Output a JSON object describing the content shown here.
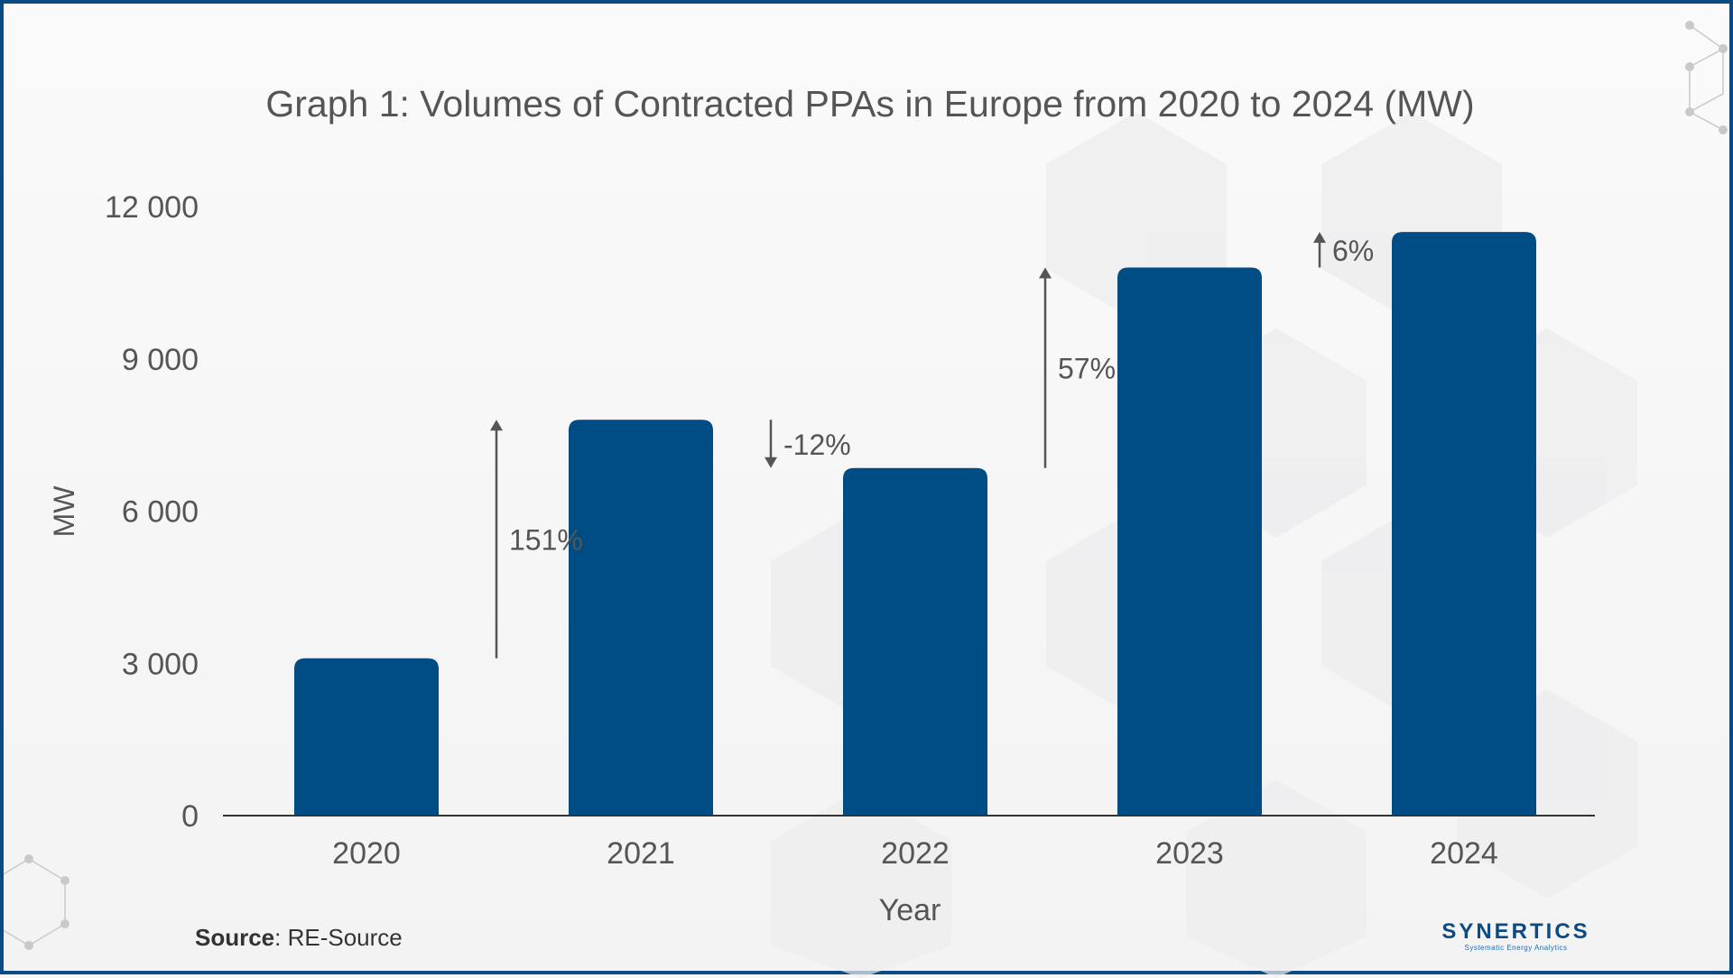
{
  "title": "Graph 1: Volumes of Contracted PPAs in Europe from 2020 to 2024 (MW)",
  "source": {
    "label": "Source",
    "text": ": RE-Source"
  },
  "logo": {
    "name": "SYNERTICS",
    "tagline": "Systematic Energy Analytics"
  },
  "colors": {
    "bar": "#004c85",
    "text": "#555555",
    "arrow": "#555555",
    "frame": "#0b4a82"
  },
  "chart_data": {
    "type": "bar",
    "categories": [
      "2020",
      "2021",
      "2022",
      "2023",
      "2024"
    ],
    "values": [
      3100,
      7800,
      6850,
      10800,
      11500
    ],
    "xlabel": "Year",
    "ylabel": "MW",
    "ylim": [
      0,
      12000
    ],
    "yticks": [
      0,
      3000,
      6000,
      9000,
      12000
    ],
    "ytick_labels": [
      "0",
      "3 000",
      "6 000",
      "9 000",
      "12 000"
    ],
    "grid": false,
    "legend": "none",
    "annotations": [
      {
        "text": "151%",
        "from": "2020",
        "to": "2021",
        "direction": "up"
      },
      {
        "text": "-12%",
        "from": "2021",
        "to": "2022",
        "direction": "down"
      },
      {
        "text": "57%",
        "from": "2022",
        "to": "2023",
        "direction": "up"
      },
      {
        "text": "6%",
        "from": "2023",
        "to": "2024",
        "direction": "up"
      }
    ]
  }
}
